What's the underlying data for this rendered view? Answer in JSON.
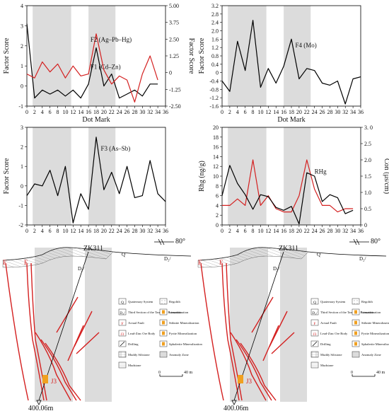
{
  "chart_data": [
    {
      "type": "line",
      "panel": "top-left",
      "xlabel": "Dot Mark",
      "ylabel": "Factor Score",
      "ylabel_right": "Factor Score",
      "x_ticks": [
        0,
        2,
        4,
        6,
        8,
        10,
        12,
        14,
        16,
        18,
        20,
        22,
        24,
        26,
        28,
        30,
        32,
        34,
        36
      ],
      "ylim": [
        -1,
        4
      ],
      "y_ticks": [
        "-1",
        "0",
        "1",
        "2",
        "3",
        "4"
      ],
      "ylim_right": [
        -2.5,
        5
      ],
      "y_ticks_right": [
        "-2.50",
        "-1.25",
        "0",
        "1.25",
        "2.50",
        "3.75",
        "5.00"
      ],
      "shaded_ranges": [
        [
          1.5,
          11.5
        ],
        [
          16,
          23
        ]
      ],
      "series": [
        {
          "name": "F1 (Cd–Zn)",
          "color": "#000000",
          "axis": "left",
          "x": [
            0,
            2,
            4,
            6,
            8,
            10,
            12,
            14,
            16,
            18,
            20,
            22,
            24,
            26,
            28,
            30,
            32,
            34
          ],
          "values": [
            3.1,
            -0.6,
            -0.2,
            -0.4,
            -0.2,
            -0.5,
            -0.2,
            -0.6,
            0.1,
            1.9,
            0.0,
            0.6,
            -0.6,
            -0.4,
            -0.2,
            -0.5,
            0.1,
            0.1
          ]
        },
        {
          "name": "F2 (Ag–Pb–Hg)",
          "color": "#d42020",
          "axis": "left",
          "x": [
            0,
            2,
            4,
            6,
            8,
            10,
            12,
            14,
            16,
            18,
            20,
            22,
            24,
            26,
            28,
            30,
            32,
            34
          ],
          "values": [
            0.6,
            0.4,
            1.2,
            0.7,
            1.1,
            0.4,
            1.0,
            0.5,
            0.6,
            2.6,
            0.8,
            0.1,
            0.5,
            0.3,
            -0.8,
            0.6,
            1.5,
            0.3
          ]
        }
      ]
    },
    {
      "type": "line",
      "panel": "top-right",
      "xlabel": "Dot Mark",
      "ylabel": "Factor Score",
      "x_ticks": [
        0,
        2,
        4,
        6,
        8,
        10,
        12,
        14,
        16,
        18,
        20,
        22,
        24,
        26,
        28,
        30,
        32,
        34,
        36
      ],
      "ylim": [
        -1.6,
        3.2
      ],
      "y_ticks": [
        "-1.6",
        "-1.2",
        "-0.8",
        "-0.4",
        "0",
        "0.4",
        "0.8",
        "1.2",
        "1.6",
        "2.0",
        "2.4",
        "2.8",
        "3.2"
      ],
      "shaded_ranges": [
        [
          1.5,
          11.5
        ],
        [
          16,
          23
        ]
      ],
      "series": [
        {
          "name": "F4 (Mo)",
          "color": "#000000",
          "axis": "left",
          "x": [
            0,
            2,
            4,
            6,
            8,
            10,
            12,
            14,
            16,
            18,
            20,
            22,
            24,
            26,
            28,
            30,
            32,
            34,
            36
          ],
          "values": [
            -0.4,
            -0.9,
            1.5,
            0.1,
            2.5,
            -0.7,
            0.2,
            -0.5,
            0.3,
            1.6,
            -0.3,
            0.2,
            0.1,
            -0.5,
            -0.6,
            -0.4,
            -1.5,
            -0.3,
            -0.2
          ]
        }
      ]
    },
    {
      "type": "line",
      "panel": "bottom-left",
      "xlabel": "",
      "ylabel": "Factor Score",
      "x_ticks": [
        0,
        2,
        4,
        6,
        8,
        10,
        12,
        14,
        16,
        18,
        20,
        22,
        24,
        26,
        28,
        30,
        32,
        34,
        36
      ],
      "ylim": [
        -2,
        3
      ],
      "y_ticks": [
        "-2",
        "-1",
        "0",
        "1",
        "2",
        "3"
      ],
      "shaded_ranges": [
        [
          1.5,
          11.5
        ],
        [
          16,
          23
        ]
      ],
      "series": [
        {
          "name": "F3 (As–Sb)",
          "color": "#000000",
          "axis": "left",
          "x": [
            0,
            2,
            4,
            6,
            8,
            10,
            12,
            14,
            16,
            18,
            20,
            22,
            24,
            26,
            28,
            30,
            32,
            34,
            36
          ],
          "values": [
            -0.5,
            0.1,
            0.0,
            0.8,
            -0.5,
            1.0,
            -1.9,
            -0.4,
            -1.2,
            2.5,
            -0.2,
            0.7,
            -0.4,
            1.0,
            -0.6,
            -0.5,
            1.3,
            -0.4,
            -0.8
          ]
        }
      ]
    },
    {
      "type": "line",
      "panel": "bottom-right",
      "xlabel": "",
      "ylabel": "Rhg (ng/g)",
      "ylabel_right": "Con (μs/cm)",
      "x_ticks": [
        0,
        2,
        4,
        6,
        8,
        10,
        12,
        14,
        16,
        18,
        20,
        22,
        24,
        26,
        28,
        30,
        32,
        34,
        36
      ],
      "ylim": [
        0,
        20
      ],
      "y_ticks": [
        "0",
        "2",
        "4",
        "6",
        "8",
        "10",
        "12",
        "14",
        "16",
        "18",
        "20"
      ],
      "ylim_right": [
        0,
        3.0
      ],
      "y_ticks_right": [
        "0",
        "0.5",
        "1.0",
        "1.5",
        "2.0",
        "2.5",
        "3. 0"
      ],
      "shaded_ranges": [
        [
          1.5,
          11.5
        ],
        [
          16,
          23
        ]
      ],
      "series": [
        {
          "name": "Con",
          "color": "#d42020",
          "axis": "right",
          "x": [
            0,
            2,
            4,
            6,
            8,
            10,
            12,
            14,
            16,
            18,
            20,
            22,
            24,
            26,
            28,
            30,
            32,
            34
          ],
          "values": [
            0.6,
            0.6,
            0.8,
            0.6,
            2.0,
            0.6,
            0.9,
            0.5,
            0.4,
            0.4,
            0.9,
            2.0,
            1.1,
            0.6,
            0.6,
            0.4,
            0.5,
            0.5
          ]
        },
        {
          "name": "RHg",
          "color": "#000000",
          "axis": "left",
          "x": [
            0,
            2,
            4,
            6,
            8,
            10,
            12,
            14,
            16,
            18,
            20,
            22,
            24,
            26,
            28,
            30,
            32,
            34
          ],
          "values": [
            6,
            12.2,
            8.5,
            6.2,
            3.2,
            6.2,
            5.8,
            3.6,
            3.0,
            3.8,
            0.2,
            10.7,
            10.0,
            4.8,
            6.2,
            5.6,
            2.3,
            3.0
          ]
        }
      ]
    }
  ],
  "section": {
    "scale_text": "80°",
    "borehole_label": "ZK311",
    "depth_label": "400.06m",
    "fault_labels": [
      "F",
      "F"
    ],
    "formation_labels": [
      "Q",
      "D₂/"
    ],
    "orebody_label": "J3",
    "scale_bar": {
      "zero": "0",
      "end": "40 m"
    }
  },
  "legend": {
    "items": [
      {
        "symbol": "Q",
        "label": "Quaternary System"
      },
      {
        "symbol": "regolith",
        "label": "Regolith"
      },
      {
        "symbol": "D₂/",
        "label": "Third Section of the Tangding Formation"
      },
      {
        "symbol": "limonite",
        "label": "Limonitization"
      },
      {
        "symbol": "F",
        "label": "Actual Fault"
      },
      {
        "symbol": "stibnite",
        "label": "Stibnite Mineralization"
      },
      {
        "symbol": "J3",
        "label": "Lead-Zinc Ore Body"
      },
      {
        "symbol": "pyrite",
        "label": "Pyrite Mineralization"
      },
      {
        "symbol": "drill",
        "label": "Drilling"
      },
      {
        "symbol": "sphalerite",
        "label": "Sphalerite Mineralization"
      },
      {
        "symbol": "siltstone",
        "label": "Muddy Siltstone"
      },
      {
        "symbol": "anomaly",
        "label": "Anomaly Zone"
      },
      {
        "symbol": "mudstone",
        "label": "Mudstone"
      }
    ]
  },
  "colors": {
    "red": "#d42020",
    "shade": "#dcdcdc",
    "orange": "#f0a020"
  }
}
